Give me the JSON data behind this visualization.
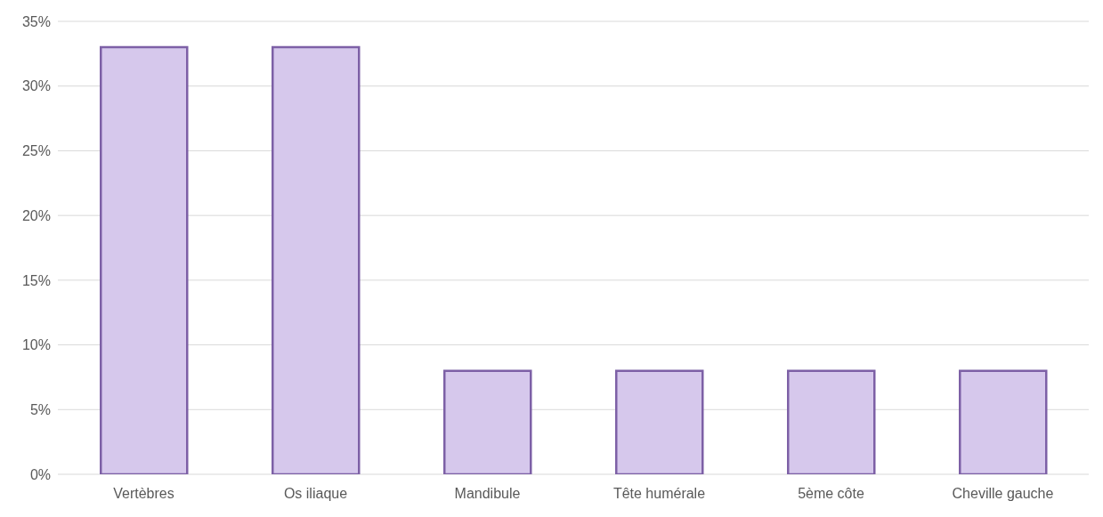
{
  "chart_data": {
    "type": "bar",
    "categories": [
      "Vertèbres",
      "Os iliaque",
      "Mandibule",
      "Tête humérale",
      "5ème côte",
      "Cheville gauche"
    ],
    "values": [
      33,
      33,
      8,
      8,
      8,
      8
    ],
    "color": "#d6c8ec",
    "ylim": [
      0,
      35
    ],
    "yticks": [
      {
        "value": 0,
        "label": "0%"
      },
      {
        "value": 5,
        "label": "5%"
      },
      {
        "value": 10,
        "label": "10%"
      },
      {
        "value": 15,
        "label": "15%"
      },
      {
        "value": 20,
        "label": "20%"
      },
      {
        "value": 25,
        "label": "25%"
      },
      {
        "value": 30,
        "label": "30%"
      },
      {
        "value": 35,
        "label": "35%"
      }
    ],
    "grid": "y",
    "legend": false
  }
}
